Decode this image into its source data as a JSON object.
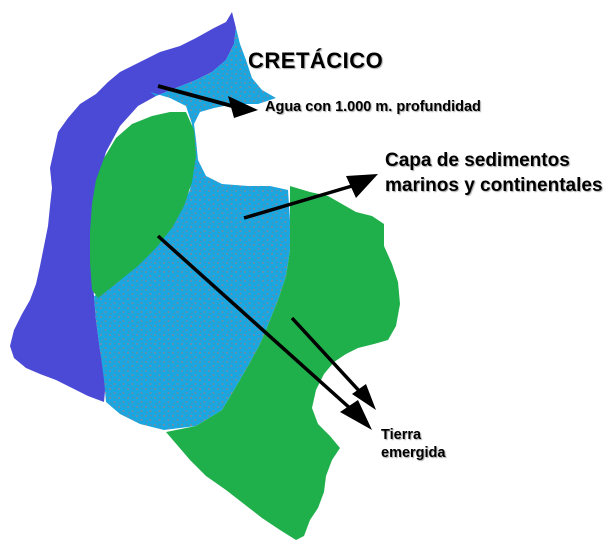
{
  "title": "CRETÁCICO",
  "legend": {
    "agua": "Agua con 1.000 m. profundidad",
    "capa_line1": "Capa de sedimentos",
    "capa_line2": "marinos y continentales",
    "tierra_line1": "Tierra",
    "tierra_line2": "emergida"
  },
  "colors": {
    "deep_water": "#4a4ad6",
    "sediment": "#1aa6e0",
    "land": "#20b04b",
    "arrow": "#000000"
  }
}
